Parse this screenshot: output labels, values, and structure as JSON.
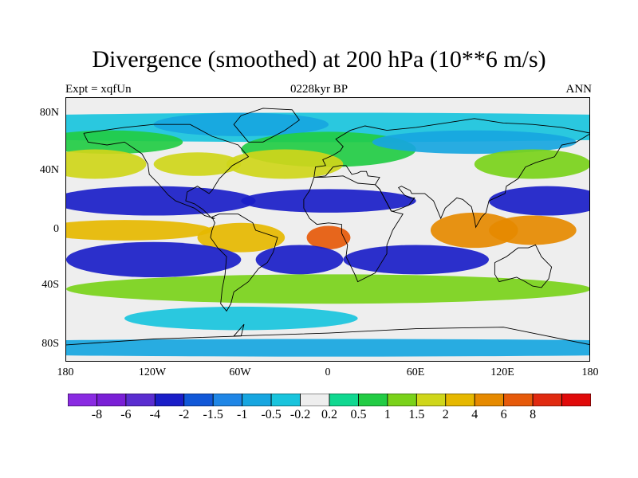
{
  "title": "Divergence (smoothed) at 200 hPa (10**6 m/s)",
  "left_label": "Expt = xqfUn",
  "center_label": "0228kyr BP",
  "right_label": "ANN",
  "lat_labels": [
    "80N",
    "40N",
    "0",
    "40S",
    "80S"
  ],
  "lon_labels": [
    "180",
    "120W",
    "60W",
    "0",
    "60E",
    "120E",
    "180"
  ],
  "colorbar": {
    "colors": [
      "#8a2be2",
      "#7a1fd6",
      "#5a2dd0",
      "#1a1ec8",
      "#1158d8",
      "#1f86e6",
      "#17a6e0",
      "#19c4dd",
      "#eeeeee",
      "#10d890",
      "#22cc44",
      "#7ad21a",
      "#cfd61a",
      "#e6b800",
      "#e68a00",
      "#e65a0a",
      "#e02a10",
      "#e00a0a"
    ],
    "labels": [
      "-8",
      "-6",
      "-4",
      "-2",
      "-1.5",
      "-1",
      "-0.5",
      "-0.2",
      "0.2",
      "0.5",
      "1",
      "1.5",
      "2",
      "4",
      "6",
      "8"
    ]
  },
  "bands": [
    {
      "lat": 70,
      "lon": 0,
      "rx": 360,
      "ry": 10,
      "level": -0.4
    },
    {
      "lat": 72,
      "lon": -60,
      "rx": 60,
      "ry": 8,
      "level": -0.8
    },
    {
      "lat": 60,
      "lon": -150,
      "rx": 50,
      "ry": 8,
      "level": 0.6
    },
    {
      "lat": 55,
      "lon": 0,
      "rx": 60,
      "ry": 12,
      "level": 0.8
    },
    {
      "lat": 60,
      "lon": 100,
      "rx": 70,
      "ry": 8,
      "level": -0.6
    },
    {
      "lat": 45,
      "lon": -160,
      "rx": 35,
      "ry": 10,
      "level": 1.6
    },
    {
      "lat": 45,
      "lon": -90,
      "rx": 30,
      "ry": 8,
      "level": 1.6
    },
    {
      "lat": 45,
      "lon": -30,
      "rx": 40,
      "ry": 10,
      "level": 1.8
    },
    {
      "lat": 45,
      "lon": 140,
      "rx": 40,
      "ry": 10,
      "level": 1.4
    },
    {
      "lat": 20,
      "lon": -120,
      "rx": 70,
      "ry": 10,
      "level": -2.4
    },
    {
      "lat": 20,
      "lon": 0,
      "rx": 60,
      "ry": 8,
      "level": -2.2
    },
    {
      "lat": 20,
      "lon": 150,
      "rx": 40,
      "ry": 10,
      "level": -2.6
    },
    {
      "lat": 0,
      "lon": -140,
      "rx": 60,
      "ry": 7,
      "level": 2.6
    },
    {
      "lat": -5,
      "lon": -60,
      "rx": 30,
      "ry": 10,
      "level": 3.5
    },
    {
      "lat": -5,
      "lon": 0,
      "rx": 15,
      "ry": 8,
      "level": 7
    },
    {
      "lat": 0,
      "lon": 100,
      "rx": 30,
      "ry": 12,
      "level": 4.5
    },
    {
      "lat": 0,
      "lon": 140,
      "rx": 30,
      "ry": 10,
      "level": 5
    },
    {
      "lat": -20,
      "lon": -120,
      "rx": 60,
      "ry": 12,
      "level": -2.4
    },
    {
      "lat": -20,
      "lon": -20,
      "rx": 30,
      "ry": 10,
      "level": -2.6
    },
    {
      "lat": -20,
      "lon": 60,
      "rx": 50,
      "ry": 10,
      "level": -2.2
    },
    {
      "lat": -40,
      "lon": 0,
      "rx": 180,
      "ry": 10,
      "level": 1.2
    },
    {
      "lat": -60,
      "lon": -60,
      "rx": 80,
      "ry": 8,
      "level": -0.4
    },
    {
      "lat": -80,
      "lon": 0,
      "rx": 360,
      "ry": 6,
      "level": -0.6
    }
  ]
}
